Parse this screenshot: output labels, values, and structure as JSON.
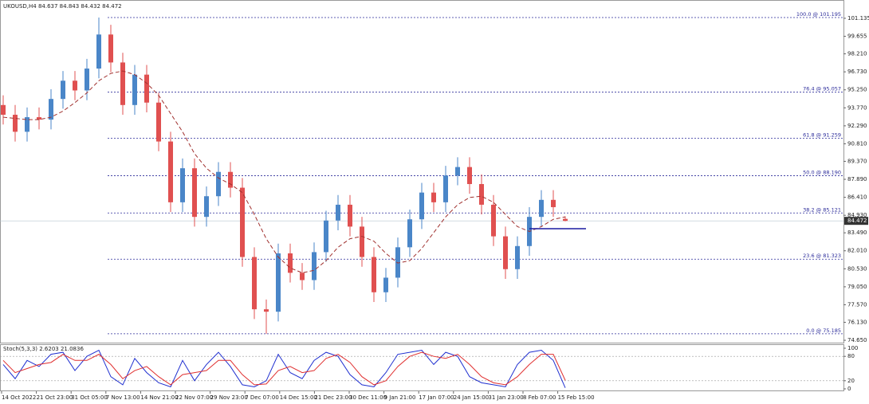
{
  "chart_data": {
    "type": "candlestick",
    "title": "UKOUSD,H4  84.637 84.843 84.432 84.472",
    "up_color": "#4a86c8",
    "down_color": "#e05050",
    "ylim": [
      74.39,
      102.18
    ],
    "yticks": [
      {
        "value": 101.135,
        "label": "101.135"
      },
      {
        "value": 99.655,
        "label": "99.655"
      },
      {
        "value": 98.21,
        "label": "98.210"
      },
      {
        "value": 96.73,
        "label": "96.730"
      },
      {
        "value": 95.25,
        "label": "95.250"
      },
      {
        "value": 93.77,
        "label": "93.770"
      },
      {
        "value": 92.29,
        "label": "92.290"
      },
      {
        "value": 90.81,
        "label": "90.810"
      },
      {
        "value": 89.37,
        "label": "89.370"
      },
      {
        "value": 87.89,
        "label": "87.890"
      },
      {
        "value": 86.41,
        "label": "86.410"
      },
      {
        "value": 84.93,
        "label": "84.930"
      },
      {
        "value": 83.49,
        "label": "83.490"
      },
      {
        "value": 82.01,
        "label": "82.010"
      },
      {
        "value": 80.53,
        "label": "80.530"
      },
      {
        "value": 79.05,
        "label": "79.050"
      },
      {
        "value": 77.57,
        "label": "77.570"
      },
      {
        "value": 76.13,
        "label": "76.130"
      },
      {
        "value": 74.65,
        "label": "74.650"
      }
    ],
    "x_labels": [
      "14 Oct 2022",
      "21 Oct 23:00",
      "31 Oct 05:00",
      "7 Nov 13:00",
      "14 Nov 21:00",
      "22 Nov 07:00",
      "29 Nov 23:00",
      "7 Dec 07:00",
      "14 Dec 15:00",
      "21 Dec 23:00",
      "30 Dec 11:00",
      "9 Jan 21:00",
      "17 Jan 07:00",
      "24 Jan 15:00",
      "31 Jan 23:00",
      "8 Feb 07:00",
      "15 Feb 15:00"
    ],
    "open": [
      94.0,
      93.2,
      91.8,
      93.0,
      92.8,
      94.5,
      96.0,
      95.2,
      97.0,
      99.8,
      97.5,
      94.0,
      96.5,
      94.2,
      91.0,
      86.0,
      88.8,
      84.8,
      86.5,
      88.5,
      87.2,
      81.5,
      77.2,
      77.0,
      81.8,
      80.2,
      79.6,
      81.9,
      84.5,
      85.8,
      84.0,
      81.5,
      78.6,
      79.8,
      82.3,
      84.6,
      86.8,
      86.0,
      88.2,
      88.9,
      87.5,
      85.8,
      83.2,
      80.5,
      82.4,
      84.8,
      86.2,
      84.637
    ],
    "high": [
      94.8,
      94.0,
      93.8,
      93.8,
      95.3,
      96.8,
      96.8,
      97.8,
      101.195,
      100.6,
      98.3,
      97.3,
      97.3,
      95.0,
      91.8,
      89.6,
      89.6,
      87.3,
      89.3,
      89.3,
      88.0,
      82.3,
      78.0,
      82.6,
      82.6,
      81.0,
      82.7,
      85.3,
      86.6,
      86.6,
      84.8,
      82.3,
      80.6,
      83.1,
      85.4,
      87.6,
      87.6,
      89.0,
      89.7,
      89.7,
      88.3,
      86.6,
      84.0,
      83.2,
      85.6,
      87.0,
      87.0,
      84.843
    ],
    "low": [
      92.4,
      91.0,
      91.0,
      92.0,
      92.0,
      93.7,
      94.4,
      94.4,
      96.2,
      96.7,
      93.2,
      93.2,
      93.4,
      90.2,
      85.2,
      85.2,
      84.0,
      84.0,
      85.7,
      86.4,
      80.7,
      76.4,
      75.185,
      76.2,
      79.4,
      78.8,
      78.8,
      81.1,
      83.7,
      83.2,
      80.7,
      77.8,
      77.8,
      79.0,
      81.5,
      83.8,
      85.2,
      85.2,
      87.4,
      86.7,
      85.0,
      82.4,
      79.7,
      79.7,
      81.6,
      84.0,
      84.8,
      84.432
    ],
    "close": [
      93.2,
      91.8,
      93.0,
      92.8,
      94.5,
      96.0,
      95.2,
      97.0,
      99.8,
      97.5,
      94.0,
      96.5,
      94.2,
      91.0,
      86.0,
      88.8,
      84.8,
      86.5,
      88.5,
      87.2,
      81.5,
      77.2,
      77.0,
      81.8,
      80.2,
      79.6,
      81.9,
      84.5,
      85.8,
      84.0,
      81.5,
      78.6,
      79.8,
      82.3,
      84.6,
      86.8,
      86.0,
      88.2,
      88.9,
      87.5,
      85.8,
      83.2,
      80.5,
      82.4,
      84.8,
      86.2,
      85.6,
      84.472
    ],
    "moving_average": {
      "color": "#a0302e",
      "values": [
        93.0,
        92.9,
        92.8,
        92.8,
        93.0,
        93.5,
        94.2,
        95.0,
        96.0,
        96.6,
        96.8,
        96.5,
        95.8,
        94.8,
        93.3,
        91.8,
        90.0,
        88.8,
        88.0,
        87.5,
        86.8,
        85.0,
        83.0,
        81.5,
        80.6,
        80.2,
        80.4,
        81.2,
        82.3,
        83.0,
        83.2,
        82.8,
        81.8,
        81.0,
        81.2,
        82.2,
        83.5,
        84.8,
        85.8,
        86.4,
        86.5,
        86.0,
        85.0,
        84.0,
        83.6,
        84.0,
        84.6,
        84.8
      ]
    },
    "fib_levels": {
      "color": "#2b2b9a",
      "levels": [
        {
          "value": 101.195,
          "label": "100.0 @ 101.195"
        },
        {
          "value": 95.057,
          "label": "76.4 @ 95.057"
        },
        {
          "value": 91.259,
          "label": "61.8 @ 91.259"
        },
        {
          "value": 88.19,
          "label": "50.0 @ 88.190"
        },
        {
          "value": 85.121,
          "label": "38.2 @ 85.121"
        },
        {
          "value": 81.323,
          "label": "23.6 @ 81.323"
        },
        {
          "value": 75.185,
          "label": "0.0 @ 75.185"
        }
      ]
    },
    "support_line": {
      "value": 83.83,
      "color": "#1a1aa0"
    },
    "current_price": {
      "value": 84.472,
      "label": "84.472"
    },
    "stochastic": {
      "title": "Stoch(5,3,3) 2.6203 21.0836",
      "ylim": [
        0,
        100
      ],
      "yticks": [
        0,
        20,
        80,
        100
      ],
      "levels": [
        20,
        80
      ],
      "series": [
        {
          "color": "#1f2fd0",
          "values": [
            60,
            25,
            70,
            55,
            85,
            90,
            45,
            80,
            95,
            30,
            10,
            75,
            40,
            15,
            5,
            70,
            20,
            60,
            90,
            55,
            10,
            5,
            20,
            85,
            40,
            25,
            70,
            90,
            80,
            35,
            10,
            5,
            40,
            85,
            90,
            95,
            60,
            90,
            80,
            30,
            15,
            10,
            5,
            60,
            90,
            95,
            70,
            2.6203
          ]
        },
        {
          "color": "#e03030",
          "values": [
            70,
            40,
            50,
            60,
            65,
            85,
            70,
            70,
            85,
            60,
            25,
            45,
            55,
            30,
            10,
            35,
            40,
            45,
            70,
            70,
            35,
            10,
            12,
            45,
            55,
            40,
            45,
            75,
            85,
            65,
            30,
            10,
            20,
            55,
            80,
            90,
            80,
            75,
            85,
            60,
            30,
            15,
            10,
            30,
            60,
            85,
            85,
            21.0836
          ]
        }
      ]
    }
  }
}
